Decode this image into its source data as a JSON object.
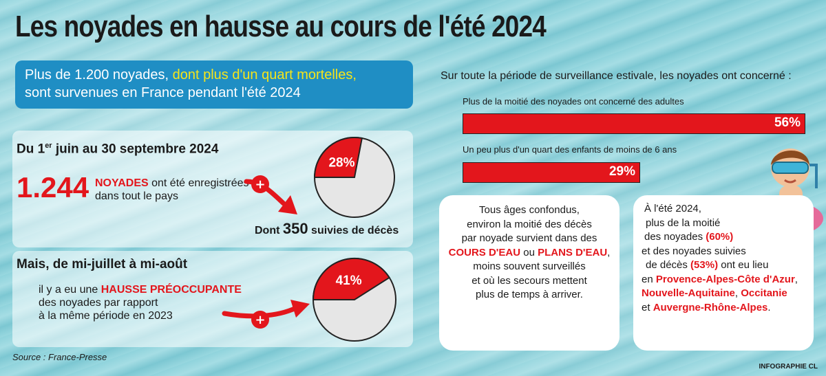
{
  "title": "Les noyades en hausse au cours de l'été 2024",
  "headline": {
    "part1": "Plus de 1.200 noyades, ",
    "highlight": "dont plus d'un quart mortelles,",
    "part2": "sont survenues en France pendant l'été 2024"
  },
  "section1": {
    "period_prefix": "Du 1",
    "period_sup": "er",
    "period_suffix": " juin au 30 septembre 2024",
    "count": "1.244",
    "keyword": "NOYADES",
    "text_after_keyword": " ont été enregistrées",
    "text_line2": "dans tout le pays",
    "plus_sign": "+",
    "deaths_prefix": "Dont ",
    "deaths_count": "350",
    "deaths_suffix": " suivies de décès"
  },
  "section2": {
    "period": "Mais, de mi-juillet à mi-août",
    "line1_prefix": "il y a eu une ",
    "line1_keyword": "HAUSSE PRÉOCCUPANTE",
    "line2": "des noyades par rapport",
    "line3": "à la même période en 2023",
    "plus_sign": "+"
  },
  "right": {
    "intro": "Sur toute la période de surveillance estivale, les noyades ont concerné :"
  },
  "mid_card": {
    "l1": "Tous âges confondus,",
    "l2": "environ la moitié des décès",
    "l3": "par noyade survient dans des",
    "kw1": "COURS D'EAU",
    "conj": " ou ",
    "kw2": "PLANS D'EAU",
    "comma": ",",
    "l5": "moins souvent surveillés",
    "l6": "et où les secours mettent",
    "l7": "plus de temps à arriver."
  },
  "right_card": {
    "l1": "À l'été 2024,",
    "l2": "plus de la moitié",
    "l3": "des noyades ",
    "p1": "(60%)",
    "l4": "et des noyades suivies",
    "l5a": "de décès ",
    "p2": "(53%)",
    "l5b": " ont eu lieu",
    "l6a": "en ",
    "r1": "Provence-Alpes-Côte d'Azur",
    "l6b": ",",
    "r2": "Nouvelle-Aquitaine",
    "sep": ", ",
    "r3": "Occitanie",
    "l8a": "et ",
    "r4": "Auvergne-Rhône-Alpes",
    "l8b": "."
  },
  "source": "Source : France-Presse",
  "credit": "INFOGRAPHIE CL",
  "colors": {
    "accent_red": "#e3161c",
    "headline_blue": "#1f8ec4",
    "highlight_yellow": "#f6e51a"
  },
  "icons": {
    "arrow": "curved-arrow-icon",
    "illustration": "child-swim-ring-illustration"
  },
  "chart_data": [
    {
      "type": "pie",
      "slices": [
        {
          "label": "28%",
          "value": 28
        },
        {
          "value": 72
        }
      ]
    },
    {
      "type": "pie",
      "slices": [
        {
          "label": "41%",
          "value": 41
        },
        {
          "value": 59
        }
      ]
    },
    {
      "type": "bar",
      "orientation": "horizontal",
      "categories": [
        "Plus de la moitié des noyades ont concerné des adultes",
        "Un peu plus d'un quart des enfants de moins de 6 ans"
      ],
      "values": [
        56,
        29
      ],
      "value_labels": [
        "56%",
        "29%"
      ],
      "xlim": [
        0,
        56
      ]
    }
  ]
}
